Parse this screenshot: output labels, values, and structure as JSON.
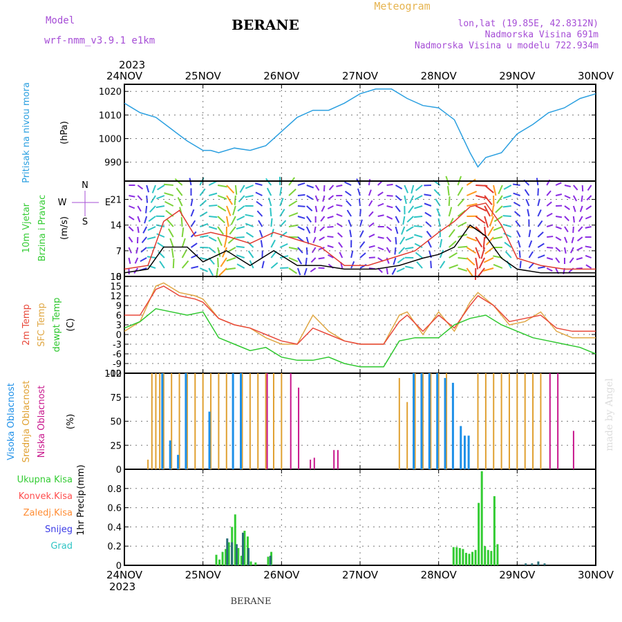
{
  "header": {
    "model_label": "Model",
    "model_name": "wrf-nmm_v3.9.1 e1km",
    "title": "BERANE",
    "subtitle": "Meteogram",
    "info_lines": [
      "lon,lat (19.85E, 42.8312N)",
      "Nadmorska Visina 691m",
      "Nadmorska Visina u modelu 722.934m"
    ]
  },
  "footer": {
    "station": "BERANE",
    "credit": "made by Angel"
  },
  "colors": {
    "pressure": "#2a9fe0",
    "wind_mean": "#000000",
    "wind_gust": "#e0392f",
    "temp2m": "#e8483a",
    "sfc": "#e0a845",
    "dew": "#2ec72e",
    "high_cloud": "#1e90e8",
    "mid_cloud": "#e0a030",
    "low_cloud": "#c8168c",
    "total_precip": "#33cc33",
    "conv_precip": "#ff4d4d",
    "frz_precip": "#ff8c33",
    "snow": "#3a3ae6",
    "hail": "#2ec4c4",
    "precip_dark": "#2a6e78"
  },
  "chart_data": {
    "type": "meteogram",
    "time_axis": {
      "labels": [
        "24NOV",
        "25NOV",
        "26NOV",
        "27NOV",
        "28NOV",
        "29NOV",
        "30NOV"
      ],
      "year": "2023",
      "start_day": 24,
      "end_day": 30
    },
    "panels": [
      {
        "id": "pressure",
        "type": "line",
        "labels": [
          "Pritisak na nivou mora",
          "(hPa)"
        ],
        "ylim": [
          982,
          1023
        ],
        "yticks": [
          990,
          1000,
          1010,
          1020
        ],
        "series": [
          {
            "name": "Pritisak na nivou mora",
            "x": [
              24.0,
              24.2,
              24.4,
              24.6,
              24.8,
              25.0,
              25.1,
              25.2,
              25.4,
              25.6,
              25.8,
              26.0,
              26.2,
              26.4,
              26.6,
              26.8,
              27.0,
              27.2,
              27.4,
              27.6,
              27.8,
              28.0,
              28.2,
              28.4,
              28.5,
              28.6,
              28.8,
              29.0,
              29.2,
              29.4,
              29.6,
              29.8,
              30.0
            ],
            "y": [
              1015,
              1011,
              1009,
              1004,
              999,
              995,
              995,
              994,
              996,
              995,
              997,
              1003,
              1009,
              1012,
              1012,
              1015,
              1019,
              1021,
              1021,
              1017,
              1014,
              1013,
              1008,
              994,
              988,
              992,
              994,
              1002,
              1006,
              1011,
              1013,
              1017,
              1019
            ]
          }
        ]
      },
      {
        "id": "wind",
        "type": "line",
        "labels": [
          "10m Vjetar",
          "Brzina i Pravac",
          "(m/s)"
        ],
        "compass": [
          "N",
          "E",
          "W",
          "S"
        ],
        "ylim": [
          0,
          26
        ],
        "yticks": [
          0,
          7,
          14,
          21
        ],
        "series": [
          {
            "name": "mean",
            "x": [
              24.0,
              24.3,
              24.5,
              24.8,
              25.0,
              25.3,
              25.6,
              25.9,
              26.2,
              26.5,
              26.8,
              27.2,
              27.5,
              27.8,
              28.0,
              28.2,
              28.4,
              28.6,
              28.8,
              29.0,
              29.3,
              29.6,
              30.0
            ],
            "y": [
              1,
              2,
              8,
              8,
              4,
              7,
              3,
              7,
              3,
              3,
              2,
              2,
              3,
              5,
              6,
              8,
              14,
              11,
              5,
              2,
              1,
              1,
              1
            ]
          },
          {
            "name": "gust",
            "x": [
              24.0,
              24.3,
              24.5,
              24.7,
              24.9,
              25.1,
              25.3,
              25.6,
              25.9,
              26.2,
              26.5,
              26.8,
              27.1,
              27.4,
              27.7,
              28.0,
              28.2,
              28.4,
              28.6,
              28.8,
              29.0,
              29.3,
              29.6,
              30.0
            ],
            "y": [
              2,
              3,
              15,
              18,
              11,
              12,
              11,
              9,
              12,
              10,
              8,
              3,
              3,
              5,
              7,
              12,
              15,
              19,
              20,
              14,
              5,
              3,
              2,
              2
            ]
          }
        ],
        "barb_color_scale": [
          "#8a2be2",
          "#3a3ae6",
          "#2ec4c4",
          "#7cd33a",
          "#ff9a1f",
          "#e0392f"
        ]
      },
      {
        "id": "temperature",
        "type": "line",
        "labels": [
          "2m Temp",
          "SFC Temp",
          "dewpt Temp",
          "(C)"
        ],
        "ylim": [
          -12,
          18
        ],
        "yticks": [
          -12,
          -9,
          -6,
          -3,
          0,
          3,
          6,
          9,
          12,
          15,
          18
        ],
        "series": [
          {
            "name": "2m Temp",
            "x": [
              24.0,
              24.2,
              24.4,
              24.5,
              24.7,
              24.9,
              25.0,
              25.2,
              25.4,
              25.6,
              25.8,
              26.0,
              26.2,
              26.4,
              26.6,
              26.8,
              27.0,
              27.3,
              27.5,
              27.6,
              27.8,
              28.0,
              28.2,
              28.4,
              28.5,
              28.7,
              28.9,
              29.1,
              29.3,
              29.5,
              29.7,
              30.0
            ],
            "y": [
              6,
              6,
              14,
              15,
              12,
              11,
              10,
              5,
              3,
              2,
              0,
              -2,
              -3,
              2,
              0,
              -2,
              -3,
              -3,
              4,
              6,
              1,
              6,
              2,
              9,
              12,
              9,
              4,
              5,
              6,
              2,
              1,
              1
            ]
          },
          {
            "name": "SFC Temp",
            "x": [
              24.0,
              24.2,
              24.4,
              24.5,
              24.7,
              24.9,
              25.0,
              25.2,
              25.4,
              25.6,
              25.8,
              26.0,
              26.2,
              26.4,
              26.6,
              26.8,
              27.0,
              27.3,
              27.5,
              27.6,
              27.8,
              28.0,
              28.2,
              28.4,
              28.5,
              28.7,
              28.9,
              29.1,
              29.3,
              29.5,
              29.7,
              30.0
            ],
            "y": [
              1,
              4,
              15,
              16,
              13,
              12,
              11,
              5,
              3,
              2,
              -1,
              -3,
              -3,
              6,
              1,
              -2,
              -3,
              -3,
              6,
              7,
              0,
              7,
              1,
              10,
              13,
              9,
              3,
              4,
              7,
              1,
              -1,
              -1
            ]
          },
          {
            "name": "dewpt Temp",
            "x": [
              24.0,
              24.2,
              24.4,
              24.6,
              24.8,
              25.0,
              25.2,
              25.4,
              25.6,
              25.8,
              26.0,
              26.2,
              26.4,
              26.6,
              26.8,
              27.0,
              27.3,
              27.5,
              27.7,
              28.0,
              28.2,
              28.4,
              28.6,
              28.8,
              29.0,
              29.2,
              29.4,
              29.6,
              29.8,
              30.0
            ],
            "y": [
              2,
              4,
              8,
              7,
              6,
              7,
              -1,
              -3,
              -5,
              -4,
              -7,
              -8,
              -8,
              -7,
              -9,
              -10,
              -10,
              -2,
              -1,
              -1,
              3,
              5,
              6,
              3,
              1,
              -1,
              -2,
              -3,
              -4,
              -6
            ]
          }
        ]
      },
      {
        "id": "clouds",
        "type": "bar",
        "labels": [
          "Visoka Oblacnost",
          "Srednja Oblacnost",
          "Niska Oblacnost",
          "(%)"
        ],
        "ylim": [
          0,
          100
        ],
        "yticks": [
          0,
          25,
          50,
          75,
          100
        ],
        "series": [
          {
            "name": "Visoka Oblacnost",
            "x": [
              24.5,
              24.6,
              24.7,
              24.8,
              25.1,
              25.4,
              25.5,
              27.7,
              27.8,
              27.9,
              28.0,
              28.1,
              28.2,
              28.3,
              28.35,
              28.4
            ],
            "values": [
              100,
              30,
              15,
              100,
              60,
              100,
              100,
              100,
              100,
              100,
              100,
              95,
              90,
              45,
              35,
              35
            ]
          },
          {
            "name": "Srednja Oblacnost",
            "x": [
              24.3,
              24.35,
              24.4,
              24.45,
              24.5,
              24.6,
              24.7,
              24.8,
              24.9,
              25.0,
              25.1,
              25.2,
              25.3,
              25.5,
              25.6,
              25.7,
              25.8,
              25.9,
              26.0,
              27.5,
              27.6,
              27.7,
              27.8,
              27.9,
              28.0,
              28.1,
              28.5,
              28.6,
              28.7,
              28.8,
              28.9,
              29.0,
              29.1,
              29.2,
              29.3
            ],
            "values": [
              10,
              100,
              100,
              100,
              100,
              100,
              100,
              100,
              100,
              100,
              100,
              100,
              100,
              100,
              100,
              100,
              100,
              100,
              100,
              95,
              70,
              100,
              100,
              100,
              100,
              100,
              100,
              100,
              100,
              100,
              100,
              100,
              100,
              100,
              100
            ]
          },
          {
            "name": "Niska Oblacnost",
            "x": [
              25.8,
              26.1,
              26.2,
              26.35,
              26.4,
              26.65,
              26.7,
              29.4,
              29.5,
              29.7
            ],
            "values": [
              100,
              100,
              85,
              10,
              12,
              20,
              20,
              100,
              100,
              40
            ]
          }
        ]
      },
      {
        "id": "precip",
        "type": "bar",
        "labels": [
          "1hr Precip",
          "(mm)"
        ],
        "legend": [
          "Ukupna Kisa",
          "Konvek.Kisa",
          "Zaledj.Kisa",
          "Snijeg",
          "Grad"
        ],
        "ylim": [
          0,
          1.0
        ],
        "yticks": [
          0,
          0.2,
          0.4,
          0.6,
          0.8
        ],
        "series": [
          {
            "name": "Ukupna Kisa",
            "x": [
              25.17,
              25.21,
              25.25,
              25.29,
              25.33,
              25.37,
              25.41,
              25.45,
              25.49,
              25.53,
              25.57,
              25.61,
              25.67,
              25.83,
              25.87,
              28.19,
              28.23,
              28.27,
              28.31,
              28.35,
              28.39,
              28.43,
              28.47,
              28.51,
              28.55,
              28.59,
              28.63,
              28.67,
              28.71,
              28.75
            ],
            "values": [
              0.11,
              0.06,
              0.14,
              0.17,
              0.24,
              0.4,
              0.53,
              0.18,
              0.1,
              0.36,
              0.3,
              0.04,
              0.03,
              0.09,
              0.14,
              0.19,
              0.19,
              0.18,
              0.17,
              0.13,
              0.12,
              0.14,
              0.16,
              0.65,
              0.98,
              0.2,
              0.16,
              0.15,
              0.72,
              0.22
            ]
          },
          {
            "name": "Snijeg",
            "x": [
              25.3,
              25.36,
              25.42,
              25.5,
              25.57,
              25.85,
              29.1,
              29.18,
              29.26,
              29.34
            ],
            "values": [
              0.28,
              0.24,
              0.22,
              0.34,
              0.18,
              0.1,
              0.02,
              0.02,
              0.04,
              0.02
            ]
          }
        ]
      }
    ]
  }
}
